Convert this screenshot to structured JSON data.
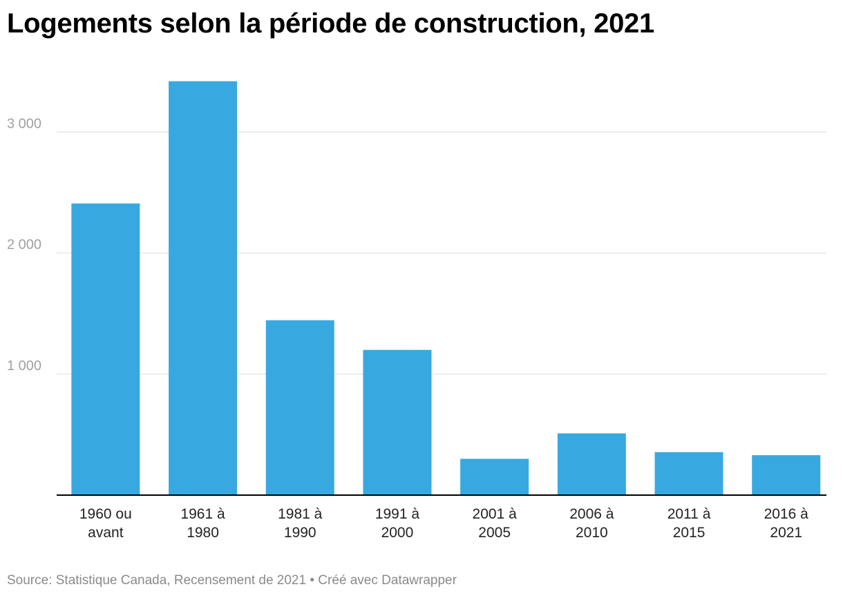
{
  "title": "Logements selon la période de construction, 2021",
  "footer": {
    "source": "Source: Statistique Canada, Recensement de 2021",
    "separator": " • ",
    "credit": "Créé avec Datawrapper"
  },
  "colors": {
    "bar": "#38a9e0",
    "grid": "#e2e2e2",
    "axis": "#000000",
    "tick_label": "#a0a0a0",
    "category_label": "#222222"
  },
  "chart_data": {
    "type": "bar",
    "title": "Logements selon la période de construction, 2021",
    "xlabel": "",
    "ylabel": "",
    "categories": [
      [
        "1960 ou",
        "avant"
      ],
      [
        "1961 à",
        "1980"
      ],
      [
        "1981 à",
        "1990"
      ],
      [
        "1991 à",
        "2000"
      ],
      [
        "2001 à",
        "2005"
      ],
      [
        "2006 à",
        "2010"
      ],
      [
        "2011 à",
        "2015"
      ],
      [
        "2016 à",
        "2021"
      ]
    ],
    "values": [
      2410,
      3420,
      1445,
      1200,
      300,
      510,
      355,
      330
    ],
    "ylim": [
      0,
      3500
    ],
    "yticks": [
      1000,
      2000,
      3000
    ],
    "ytick_labels": [
      "1 000",
      "2 000",
      "3 000"
    ],
    "grid": true,
    "legend": "none"
  }
}
